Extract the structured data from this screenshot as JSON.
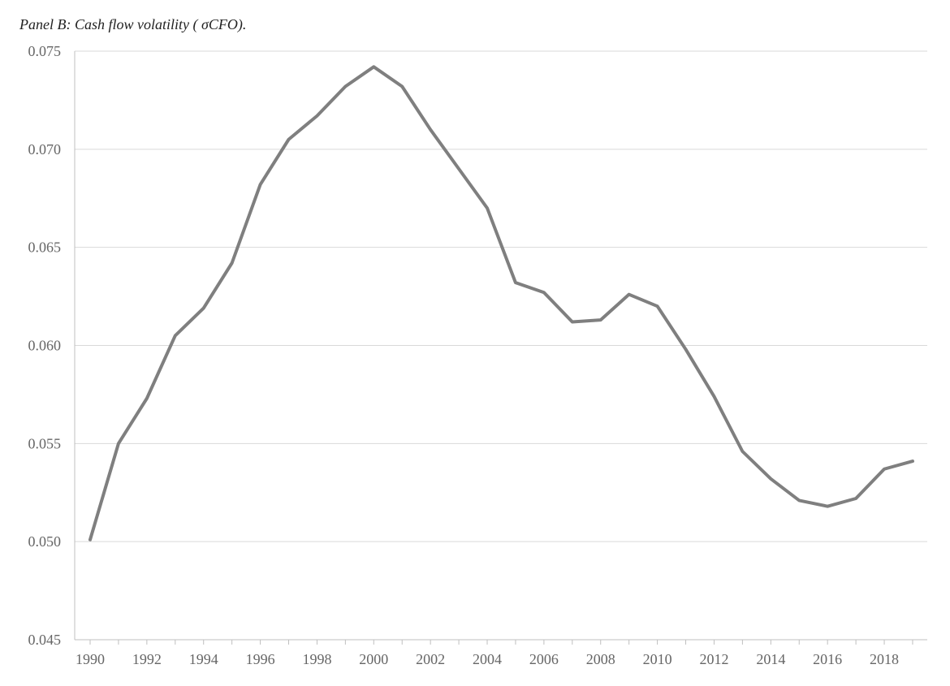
{
  "chart_data": {
    "type": "line",
    "title": "Panel B: Cash flow volatility ( σCFO).",
    "xlabel": "",
    "ylabel": "",
    "x": [
      1990,
      1991,
      1992,
      1993,
      1994,
      1995,
      1996,
      1997,
      1998,
      1999,
      2000,
      2001,
      2002,
      2003,
      2004,
      2005,
      2006,
      2007,
      2008,
      2009,
      2010,
      2011,
      2012,
      2013,
      2014,
      2015,
      2016,
      2017,
      2018,
      2019
    ],
    "series": [
      {
        "values": [
          0.0501,
          0.055,
          0.0573,
          0.0605,
          0.0619,
          0.0642,
          0.0682,
          0.0705,
          0.0717,
          0.0732,
          0.0742,
          0.0732,
          0.071,
          0.069,
          0.067,
          0.0632,
          0.0627,
          0.0612,
          0.0613,
          0.0626,
          0.062,
          0.0598,
          0.0574,
          0.0546,
          0.0532,
          0.0521,
          0.0518,
          0.0522,
          0.0537,
          0.0541
        ]
      }
    ],
    "ylim": [
      0.045,
      0.075
    ],
    "yticks": [
      "0.045",
      "0.050",
      "0.055",
      "0.060",
      "0.065",
      "0.070",
      "0.075"
    ],
    "xticks": [
      "1990",
      "1992",
      "1994",
      "1996",
      "1998",
      "2000",
      "2002",
      "2004",
      "2006",
      "2008",
      "2010",
      "2012",
      "2014",
      "2016",
      "2018"
    ],
    "grid": true,
    "colors": {
      "line": "#7f7f7f",
      "grid": "#d9d9d9",
      "axis": "#bfbfbf",
      "text": "#666666"
    }
  }
}
